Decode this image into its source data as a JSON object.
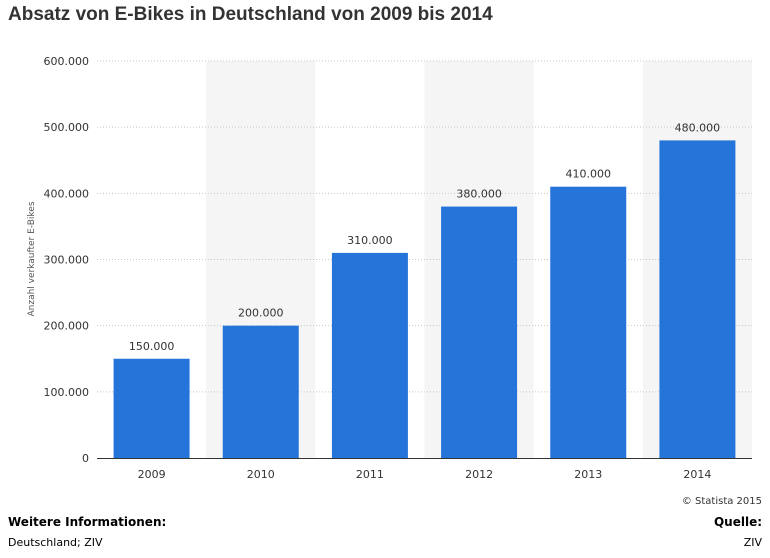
{
  "chart_data": {
    "type": "bar",
    "title": "Absatz von E-Bikes in Deutschland von 2009 bis 2014",
    "ylabel": "Anzahl verkaufter E-Bikes",
    "xlabel": "",
    "categories": [
      "2009",
      "2010",
      "2011",
      "2012",
      "2013",
      "2014"
    ],
    "values": [
      150000,
      200000,
      310000,
      380000,
      410000,
      480000
    ],
    "value_labels": [
      "150.000",
      "200.000",
      "310.000",
      "380.000",
      "410.000",
      "480.000"
    ],
    "ylim": [
      0,
      600000
    ],
    "yticks": [
      0,
      100000,
      200000,
      300000,
      400000,
      500000,
      600000
    ],
    "ytick_labels": [
      "0",
      "100.000",
      "200.000",
      "300.000",
      "400.000",
      "500.000",
      "600.000"
    ],
    "grid": true,
    "legend": "none",
    "colors": {
      "bar": "#2574d9",
      "band": "#f5f5f5",
      "grid": "#c8c8c8",
      "text": "#333333"
    }
  },
  "copyright": "© Statista 2015",
  "footer": {
    "more_info_heading": "Weitere Informationen:",
    "more_info_text": "Deutschland; ZIV",
    "source_heading": "Quelle:",
    "source_text": "ZIV"
  }
}
